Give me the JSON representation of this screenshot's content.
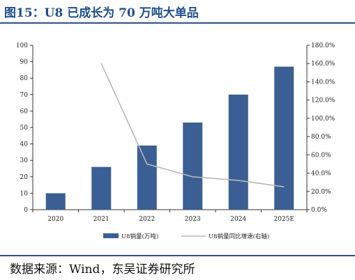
{
  "header": {
    "title": "图15：U8 已成长为 70 万吨大单品"
  },
  "footer": {
    "source": "数据来源：Wind，东吴证券研究所"
  },
  "chart_data": {
    "type": "bar",
    "categories": [
      "2020",
      "2021",
      "2022",
      "2023",
      "2024",
      "2025E"
    ],
    "series": [
      {
        "name": "U8销量(万吨)",
        "type": "bar",
        "axis": "left",
        "color": "#3b5f94",
        "values": [
          10,
          26,
          39,
          53,
          70,
          87
        ]
      },
      {
        "name": "U8销量同比增速(右轴)",
        "type": "line",
        "axis": "right",
        "color": "#b8b8b8",
        "values": [
          null,
          160.0,
          50.0,
          36.0,
          32.0,
          25.0
        ]
      }
    ],
    "ylim_left": [
      0,
      100
    ],
    "ylim_right": [
      0,
      180
    ],
    "left_ticks": [
      "0",
      "10",
      "20",
      "30",
      "40",
      "50",
      "60",
      "70",
      "80",
      "90",
      "100"
    ],
    "right_ticks": [
      "0.0%",
      "20.0%",
      "40.0%",
      "60.0%",
      "80.0%",
      "100.0%",
      "120.0%",
      "140.0%",
      "160.0%",
      "180.0%"
    ],
    "legend_position": "bottom-center",
    "grid": false
  }
}
